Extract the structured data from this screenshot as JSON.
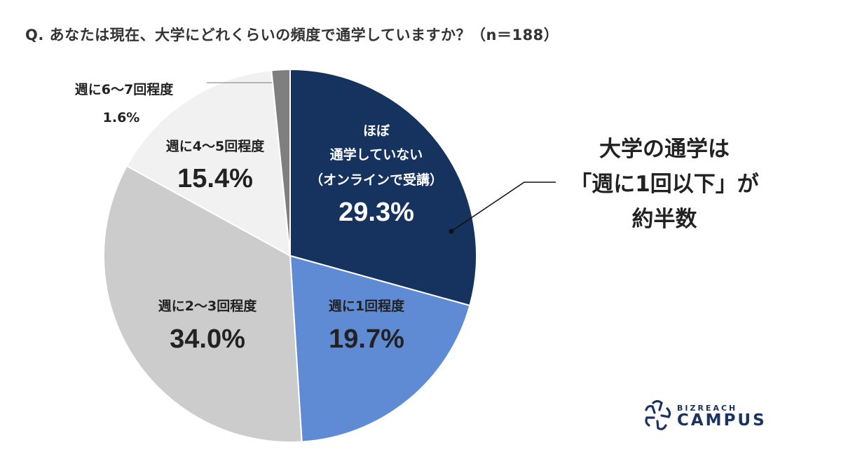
{
  "title": "Q. あなたは現在、大学にどれくらいの頻度で通学していますか？（n＝188）",
  "callout": {
    "line1": "大学の通学は",
    "line2": "「週に1回以下」が",
    "line3": "約半数"
  },
  "labels": {
    "s0": {
      "line1": "ほぼ",
      "line2": "通学していない",
      "line3": "（オンラインで受講）",
      "pct": "29.3%"
    },
    "s1": {
      "cat": "週に1回程度",
      "pct": "19.7%"
    },
    "s2": {
      "cat": "週に2〜3回程度",
      "pct": "34.0%"
    },
    "s3": {
      "cat": "週に4〜5回程度",
      "pct": "15.4%"
    },
    "s4": {
      "cat": "週に6〜7回程度",
      "pct": "1.6%"
    }
  },
  "logo": {
    "top": "BIZREACH",
    "bottom": "CAMPUS"
  },
  "chart_data": {
    "type": "pie",
    "title": "Q. あなたは現在、大学にどれくらいの頻度で通学していますか？（n＝188）",
    "categories": [
      "ほぼ通学していない（オンラインで受講）",
      "週に1回程度",
      "週に2〜3回程度",
      "週に4〜5回程度",
      "週に6〜7回程度"
    ],
    "values": [
      29.3,
      19.7,
      34.0,
      15.4,
      1.6
    ],
    "colors": [
      "#15335e",
      "#5f8ad4",
      "#cccccc",
      "#f1f1f1",
      "#7f7f7f"
    ],
    "start_angle": "12 o'clock, clockwise",
    "annotation": "大学の通学は「週に1回以下」が約半数",
    "n": 188
  }
}
